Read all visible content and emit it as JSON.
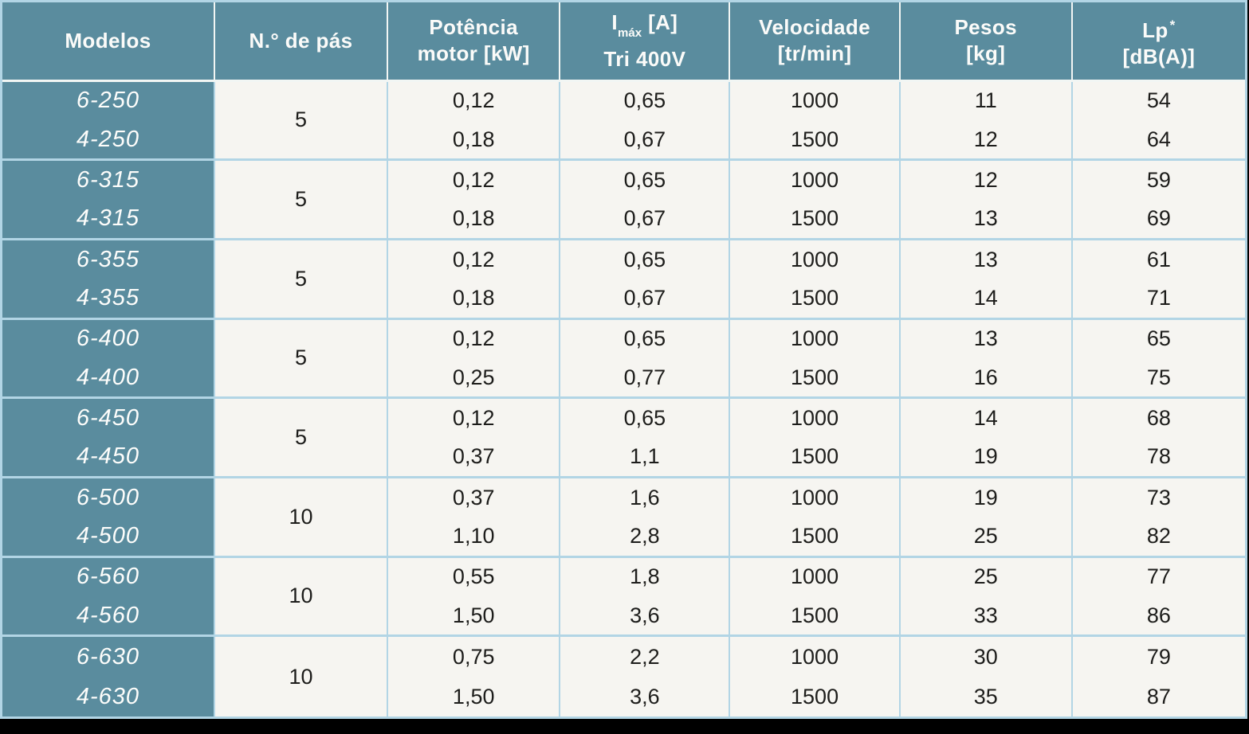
{
  "table": {
    "colors": {
      "header_bg": "#5a8c9e",
      "cell_bg": "#f6f5f1",
      "grid_border": "#b2d5e5",
      "header_separator": "#f2f6f4",
      "text_dark": "#1d1d1b",
      "text_light": "#ffffff",
      "page_bg": "#000000"
    },
    "headers": {
      "modelos": "Modelos",
      "blades": "N.° de pás",
      "power_line1": "Potência",
      "power_line2": "motor [kW]",
      "imax_base": "I",
      "imax_sub": "máx",
      "imax_unit": "[A]",
      "imax_line2": "Tri 400V",
      "speed_line1": "Velocidade",
      "speed_line2": "[tr/min]",
      "weight_line1": "Pesos",
      "weight_line2": "[kg]",
      "lp_base": "Lp",
      "lp_sup": "*",
      "lp_line2": "[dB(A)]"
    },
    "rows": [
      {
        "models": [
          "6-250",
          "4-250"
        ],
        "blades": "5",
        "power": [
          "0,12",
          "0,18"
        ],
        "imax": [
          "0,65",
          "0,67"
        ],
        "speed": [
          "1000",
          "1500"
        ],
        "weight": [
          "11",
          "12"
        ],
        "lp": [
          "54",
          "64"
        ]
      },
      {
        "models": [
          "6-315",
          "4-315"
        ],
        "blades": "5",
        "power": [
          "0,12",
          "0,18"
        ],
        "imax": [
          "0,65",
          "0,67"
        ],
        "speed": [
          "1000",
          "1500"
        ],
        "weight": [
          "12",
          "13"
        ],
        "lp": [
          "59",
          "69"
        ]
      },
      {
        "models": [
          "6-355",
          "4-355"
        ],
        "blades": "5",
        "power": [
          "0,12",
          "0,18"
        ],
        "imax": [
          "0,65",
          "0,67"
        ],
        "speed": [
          "1000",
          "1500"
        ],
        "weight": [
          "13",
          "14"
        ],
        "lp": [
          "61",
          "71"
        ]
      },
      {
        "models": [
          "6-400",
          "4-400"
        ],
        "blades": "5",
        "power": [
          "0,12",
          "0,25"
        ],
        "imax": [
          "0,65",
          "0,77"
        ],
        "speed": [
          "1000",
          "1500"
        ],
        "weight": [
          "13",
          "16"
        ],
        "lp": [
          "65",
          "75"
        ]
      },
      {
        "models": [
          "6-450",
          "4-450"
        ],
        "blades": "5",
        "power": [
          "0,12",
          "0,37"
        ],
        "imax": [
          "0,65",
          "1,1"
        ],
        "speed": [
          "1000",
          "1500"
        ],
        "weight": [
          "14",
          "19"
        ],
        "lp": [
          "68",
          "78"
        ]
      },
      {
        "models": [
          "6-500",
          "4-500"
        ],
        "blades": "10",
        "power": [
          "0,37",
          "1,10"
        ],
        "imax": [
          "1,6",
          "2,8"
        ],
        "speed": [
          "1000",
          "1500"
        ],
        "weight": [
          "19",
          "25"
        ],
        "lp": [
          "73",
          "82"
        ]
      },
      {
        "models": [
          "6-560",
          "4-560"
        ],
        "blades": "10",
        "power": [
          "0,55",
          "1,50"
        ],
        "imax": [
          "1,8",
          "3,6"
        ],
        "speed": [
          "1000",
          "1500"
        ],
        "weight": [
          "25",
          "33"
        ],
        "lp": [
          "77",
          "86"
        ]
      },
      {
        "models": [
          "6-630",
          "4-630"
        ],
        "blades": "10",
        "power": [
          "0,75",
          "1,50"
        ],
        "imax": [
          "2,2",
          "3,6"
        ],
        "speed": [
          "1000",
          "1500"
        ],
        "weight": [
          "30",
          "35"
        ],
        "lp": [
          "79",
          "87"
        ]
      }
    ]
  }
}
